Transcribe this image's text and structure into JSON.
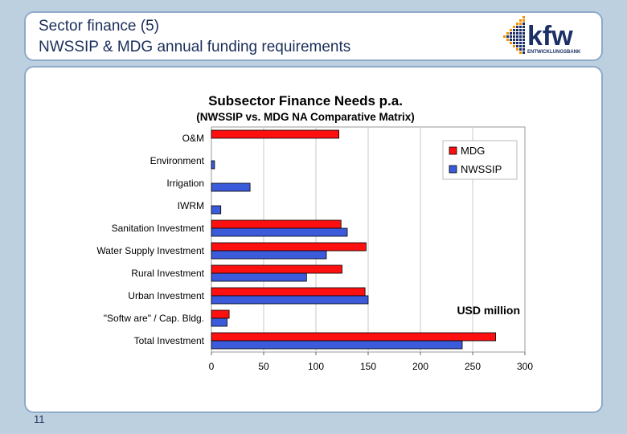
{
  "slide": {
    "title_line1": "Sector finance (5)",
    "title_line2": "NWSSIP & MDG annual funding requirements",
    "page_number": "11"
  },
  "logo": {
    "brand": "kfw",
    "subtitle": "ENTWICKLUNGSBANK",
    "color_primary": "#1c2f66",
    "color_accent": "#f39200"
  },
  "chart_data": {
    "type": "bar",
    "orientation": "horizontal",
    "title": "Subsector Finance Needs p.a.",
    "subtitle": "(NWSSIP vs. MDG NA Comparative Matrix)",
    "annotation": "USD million",
    "categories": [
      "O&M",
      "Environment",
      "Irrigation",
      "IWRM",
      "Sanitation Investment",
      "Water Supply Investment",
      "Rural Investment",
      "Urban Investment",
      "\"Softw are\" / Cap. Bldg.",
      "Total Investment"
    ],
    "series": [
      {
        "name": "MDG",
        "color": "#ff1010",
        "values": [
          122,
          null,
          null,
          null,
          124,
          148,
          125,
          147,
          17,
          272
        ]
      },
      {
        "name": "NWSSIP",
        "color": "#3b5bdb",
        "values": [
          null,
          3,
          37,
          9,
          130,
          110,
          91,
          150,
          15,
          240
        ]
      }
    ],
    "xlim": [
      0,
      300
    ],
    "xticks": [
      "0",
      "50",
      "100",
      "150",
      "200",
      "250",
      "300"
    ],
    "grid": true,
    "legend_position": "top-right"
  }
}
